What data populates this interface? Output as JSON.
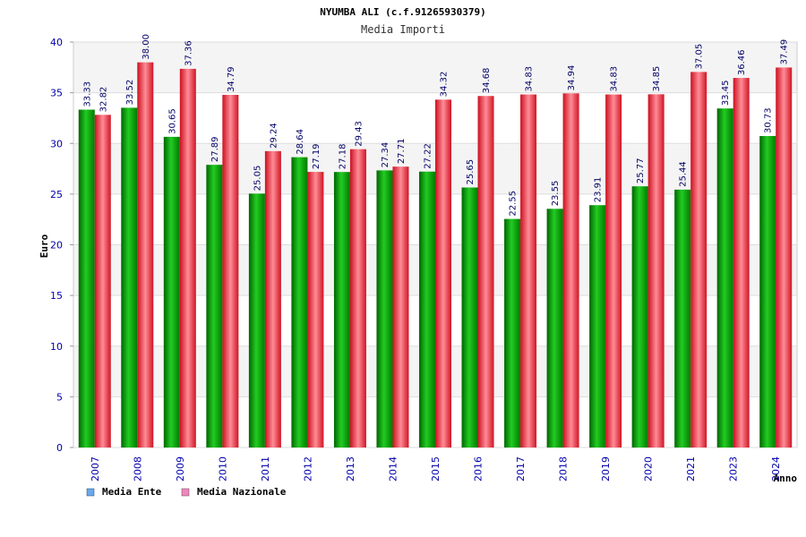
{
  "chart_data": {
    "type": "bar",
    "title": "NYUMBA ALI (c.f.91265930379)",
    "subtitle": "Media Importi",
    "ylabel": "Euro",
    "xlabel": "Anno",
    "ylim": [
      0,
      40
    ],
    "yticks": [
      0,
      5,
      10,
      15,
      20,
      25,
      30,
      35,
      40
    ],
    "grid": true,
    "legend_position": "bottom-left",
    "categories": [
      "2007",
      "2008",
      "2009",
      "2010",
      "2011",
      "2012",
      "2013",
      "2014",
      "2015",
      "2016",
      "2017",
      "2018",
      "2019",
      "2020",
      "2021",
      "2023",
      "2024"
    ],
    "series": [
      {
        "name": "Media Ente",
        "color": "#00aa00",
        "legend_color": "#66aaee",
        "values": [
          33.33,
          33.52,
          30.65,
          27.89,
          25.05,
          28.64,
          27.18,
          27.34,
          27.22,
          25.65,
          22.55,
          23.55,
          23.91,
          25.77,
          25.44,
          33.45,
          30.73
        ],
        "labels": [
          "33.33",
          "33.52",
          "30.65",
          "27.89",
          "25.05",
          "28.64",
          "27.18",
          "27.34",
          "27.22",
          "25.65",
          "22.55",
          "23.55",
          "23.91",
          "25.77",
          "25.44",
          "33.45",
          "30.73"
        ]
      },
      {
        "name": "Media Nazionale",
        "color": "#ee2233",
        "legend_color": "#ee88bb",
        "values": [
          32.82,
          38.0,
          37.36,
          34.79,
          29.24,
          27.19,
          29.43,
          27.71,
          34.32,
          34.68,
          34.83,
          34.94,
          34.83,
          34.85,
          37.05,
          36.46,
          37.49
        ],
        "labels": [
          "32.82",
          "38.00",
          "37.36",
          "34.79",
          "29.24",
          "27.19",
          "29.43",
          "27.71",
          "34.32",
          "34.68",
          "34.83",
          "34.94",
          "34.83",
          "34.85",
          "37.05",
          "36.46",
          "37.49"
        ]
      }
    ]
  }
}
